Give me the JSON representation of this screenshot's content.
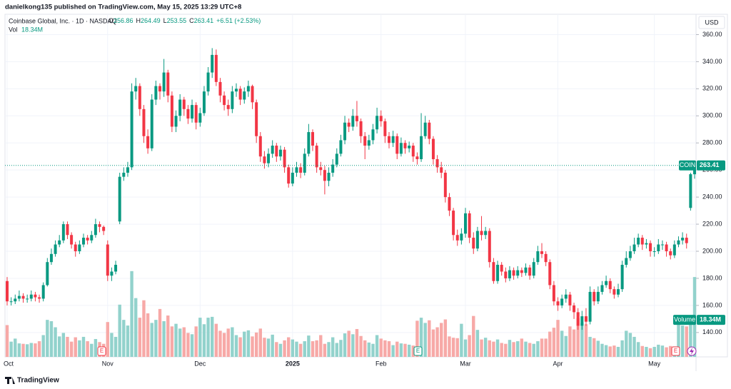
{
  "header": {
    "byline": "danielkong135 published on TradingView.com, May 15, 2025 13:29 UTC+8",
    "symbol": "Coinbase Global, Inc. · 1D · NASDAQ",
    "ohlc": [
      "O",
      "256.86",
      "H",
      "264.49",
      "L",
      "253.55",
      "C",
      "263.41"
    ],
    "change": "+6.51 (+2.53%)",
    "vol_key": "Vol",
    "vol_value": "18.34M",
    "currency": "USD",
    "footer": "TradingView"
  },
  "chart_data": {
    "type": "candlestick",
    "ticker": "COIN",
    "volume_name": "Volume",
    "volume_label": "18.34M",
    "events": [
      "E",
      "E",
      "E"
    ],
    "up_color": "#089981",
    "down_color": "#f23645",
    "volume_up_color": "#92d2cc",
    "volume_down_color": "#f7a9a7",
    "grid": true,
    "ylim": [
      122,
      375
    ],
    "volume_lim": [
      0,
      30
    ],
    "yticks": [
      {
        "value": 140,
        "label": "140.00"
      },
      {
        "value": 160,
        "label": "160.00"
      },
      {
        "value": 180,
        "label": "180.00"
      },
      {
        "value": 200,
        "label": "200.00"
      },
      {
        "value": 220,
        "label": "220.00"
      },
      {
        "value": 240,
        "label": "240.00"
      },
      {
        "value": 260,
        "label": "260.00"
      },
      {
        "value": 280,
        "label": "280.00"
      },
      {
        "value": 300,
        "label": "300.00"
      },
      {
        "value": 320,
        "label": "320.00"
      },
      {
        "value": 340,
        "label": "340.00"
      },
      {
        "value": 360,
        "label": "360.00"
      }
    ],
    "categories": [
      "Oct",
      null,
      null,
      null,
      null,
      null,
      null,
      null,
      null,
      null,
      null,
      null,
      null,
      null,
      null,
      null,
      null,
      null,
      null,
      null,
      null,
      null,
      null,
      null,
      null,
      "Nov",
      null,
      null,
      null,
      null,
      null,
      null,
      null,
      null,
      null,
      null,
      null,
      null,
      null,
      null,
      null,
      null,
      null,
      null,
      null,
      null,
      null,
      null,
      "Dec",
      null,
      null,
      null,
      null,
      null,
      null,
      null,
      null,
      null,
      null,
      null,
      null,
      null,
      null,
      null,
      null,
      null,
      null,
      null,
      null,
      null,
      null,
      "2025",
      null,
      null,
      null,
      null,
      null,
      null,
      null,
      null,
      null,
      null,
      null,
      null,
      null,
      null,
      null,
      null,
      null,
      null,
      null,
      null,
      null,
      "Feb",
      null,
      null,
      null,
      null,
      null,
      null,
      null,
      null,
      null,
      null,
      null,
      null,
      null,
      null,
      null,
      null,
      null,
      null,
      null,
      null,
      "Mar",
      null,
      null,
      null,
      null,
      null,
      null,
      null,
      null,
      null,
      null,
      null,
      null,
      null,
      null,
      null,
      null,
      null,
      null,
      null,
      null,
      null,
      null,
      "Apr",
      null,
      null,
      null,
      null,
      null,
      null,
      null,
      null,
      null,
      null,
      null,
      null,
      null,
      null,
      null,
      null,
      null,
      null,
      null,
      null,
      null,
      null,
      null,
      "May",
      null,
      null,
      null,
      null,
      null,
      null,
      null,
      null,
      null,
      null
    ],
    "open": [
      178,
      163,
      163,
      165,
      167,
      165,
      165,
      168,
      166,
      165,
      175,
      192,
      198,
      205,
      208,
      220,
      212,
      205,
      200,
      205,
      210,
      208,
      212,
      220,
      218,
      205,
      182,
      185,
      222,
      255,
      258,
      262,
      318,
      322,
      305,
      285,
      276,
      312,
      322,
      318,
      332,
      315,
      292,
      300,
      312,
      305,
      298,
      308,
      295,
      302,
      318,
      332,
      345,
      325,
      315,
      308,
      305,
      318,
      320,
      312,
      318,
      322,
      310,
      285,
      270,
      265,
      272,
      278,
      270,
      275,
      262,
      250,
      258,
      262,
      258,
      272,
      288,
      278,
      262,
      260,
      252,
      258,
      264,
      272,
      282,
      295,
      292,
      300,
      296,
      285,
      278,
      282,
      290,
      300,
      296,
      285,
      280,
      285,
      272,
      280,
      276,
      278,
      270,
      268,
      285,
      295,
      283,
      268,
      262,
      258,
      240,
      230,
      212,
      208,
      213,
      228,
      210,
      202,
      215,
      212,
      215,
      192,
      178,
      190,
      185,
      180,
      186,
      182,
      186,
      184,
      188,
      182,
      192,
      200,
      198,
      192,
      175,
      163,
      160,
      165,
      168,
      160,
      155,
      145,
      152,
      148,
      170,
      163,
      170,
      175,
      178,
      172,
      168,
      172,
      190,
      195,
      200,
      205,
      210,
      205,
      206,
      200,
      200,
      205,
      205,
      200,
      197,
      205,
      208,
      210,
      232,
      256.86
    ],
    "high": [
      181,
      166,
      168,
      171,
      169,
      168,
      171,
      170,
      168,
      177,
      195,
      202,
      208,
      212,
      222,
      222,
      214,
      207,
      208,
      213,
      212,
      215,
      224,
      222,
      219,
      208,
      188,
      193,
      258,
      262,
      266,
      324,
      328,
      324,
      308,
      290,
      316,
      326,
      324,
      342,
      334,
      318,
      304,
      316,
      314,
      308,
      312,
      310,
      306,
      322,
      336,
      350,
      349,
      328,
      318,
      312,
      322,
      324,
      322,
      321,
      326,
      323,
      312,
      288,
      274,
      276,
      282,
      280,
      278,
      277,
      264,
      262,
      266,
      265,
      276,
      294,
      290,
      280,
      266,
      263,
      262,
      268,
      276,
      286,
      300,
      298,
      305,
      311,
      298,
      288,
      286,
      294,
      306,
      304,
      298,
      288,
      289,
      287,
      284,
      282,
      281,
      280,
      273,
      302,
      300,
      297,
      285,
      271,
      266,
      260,
      243,
      232,
      216,
      217,
      232,
      230,
      214,
      218,
      226,
      218,
      217,
      195,
      193,
      192,
      188,
      189,
      188,
      189,
      188,
      191,
      190,
      195,
      204,
      206,
      200,
      194,
      178,
      166,
      168,
      172,
      170,
      162,
      158,
      156,
      158,
      174,
      172,
      174,
      178,
      182,
      180,
      174,
      176,
      193,
      200,
      204,
      210,
      213,
      212,
      209,
      208,
      203,
      209,
      208,
      207,
      202,
      208,
      211,
      214,
      213,
      258,
      264.49
    ],
    "low": [
      160,
      160,
      161,
      163,
      162,
      162,
      163,
      163,
      162,
      163,
      174,
      190,
      196,
      203,
      206,
      209,
      202,
      196,
      198,
      203,
      205,
      206,
      210,
      214,
      212,
      178,
      178,
      183,
      220,
      252,
      255,
      260,
      312,
      300,
      280,
      272,
      274,
      308,
      312,
      314,
      310,
      288,
      288,
      296,
      300,
      294,
      295,
      290,
      292,
      300,
      315,
      328,
      322,
      310,
      304,
      300,
      302,
      314,
      308,
      309,
      314,
      305,
      280,
      266,
      261,
      262,
      269,
      266,
      267,
      258,
      247,
      248,
      255,
      254,
      256,
      270,
      274,
      258,
      256,
      242,
      248,
      255,
      262,
      270,
      279,
      288,
      289,
      292,
      280,
      268,
      275,
      279,
      287,
      292,
      280,
      276,
      277,
      268,
      270,
      272,
      273,
      266,
      264,
      266,
      283,
      279,
      264,
      258,
      254,
      236,
      226,
      208,
      204,
      205,
      210,
      206,
      198,
      200,
      208,
      209,
      188,
      176,
      176,
      182,
      177,
      178,
      179,
      180,
      181,
      182,
      179,
      180,
      190,
      195,
      189,
      172,
      160,
      156,
      158,
      162,
      156,
      150,
      142,
      142,
      145,
      146,
      160,
      161,
      168,
      173,
      169,
      165,
      166,
      170,
      188,
      193,
      198,
      203,
      201,
      202,
      196,
      196,
      198,
      201,
      196,
      194,
      195,
      203,
      205,
      202,
      230,
      253.55
    ],
    "close": [
      163,
      163,
      165,
      167,
      165,
      165,
      168,
      166,
      165,
      175,
      192,
      198,
      205,
      208,
      220,
      212,
      205,
      200,
      205,
      210,
      208,
      212,
      220,
      218,
      215,
      182,
      185,
      190,
      255,
      258,
      262,
      318,
      322,
      305,
      285,
      276,
      312,
      322,
      318,
      332,
      315,
      292,
      300,
      312,
      305,
      298,
      308,
      295,
      302,
      318,
      332,
      345,
      325,
      315,
      308,
      305,
      318,
      320,
      312,
      318,
      322,
      310,
      285,
      270,
      265,
      272,
      278,
      270,
      275,
      262,
      250,
      258,
      262,
      258,
      272,
      288,
      278,
      262,
      260,
      252,
      258,
      264,
      272,
      282,
      295,
      292,
      300,
      296,
      285,
      278,
      282,
      290,
      300,
      296,
      285,
      280,
      285,
      272,
      280,
      276,
      278,
      270,
      268,
      285,
      295,
      283,
      268,
      262,
      258,
      240,
      230,
      212,
      208,
      213,
      228,
      210,
      202,
      215,
      212,
      215,
      192,
      178,
      190,
      185,
      180,
      186,
      182,
      186,
      184,
      188,
      182,
      192,
      200,
      198,
      192,
      175,
      163,
      160,
      165,
      168,
      160,
      155,
      145,
      152,
      148,
      170,
      163,
      170,
      175,
      178,
      172,
      168,
      172,
      190,
      195,
      200,
      205,
      210,
      205,
      206,
      200,
      200,
      205,
      205,
      200,
      197,
      205,
      208,
      210,
      206,
      256.9,
      263.41
    ],
    "volume": [
      7.3,
      3.5,
      4.2,
      3.1,
      3.0,
      2.9,
      3.2,
      3.1,
      3.6,
      5.0,
      8.5,
      8.2,
      6.8,
      4.7,
      5.5,
      4.6,
      3.5,
      4.5,
      3.8,
      4.6,
      3.6,
      3.0,
      4.1,
      3.4,
      3.0,
      8.0,
      5.5,
      4.6,
      12.0,
      8.5,
      7.2,
      19.7,
      13.5,
      9.0,
      13.0,
      10.0,
      7.8,
      8.5,
      11.0,
      8.2,
      9.5,
      7.0,
      7.6,
      6.5,
      6.8,
      5.5,
      5.2,
      7.0,
      9.0,
      7.5,
      9.0,
      9.2,
      7.6,
      6.0,
      5.5,
      6.5,
      6.8,
      5.0,
      4.5,
      5.8,
      6.1,
      4.7,
      5.6,
      6.5,
      4.4,
      4.2,
      5.1,
      3.4,
      3.0,
      3.8,
      4.5,
      4.0,
      3.5,
      3.0,
      3.6,
      4.9,
      3.6,
      3.8,
      5.0,
      3.0,
      3.4,
      4.5,
      3.2,
      3.9,
      5.4,
      6.0,
      5.2,
      6.4,
      4.8,
      3.8,
      3.3,
      3.0,
      5.0,
      4.2,
      3.8,
      3.6,
      2.7,
      3.5,
      3.1,
      3.0,
      2.8,
      2.6,
      8.3,
      9.0,
      7.8,
      8.4,
      6.3,
      6.8,
      7.8,
      8.6,
      4.7,
      4.4,
      4.3,
      7.6,
      4.0,
      5.0,
      9.4,
      6.2,
      4.0,
      4.4,
      3.8,
      3.5,
      4.0,
      3.2,
      3.0,
      3.9,
      3.4,
      3.6,
      4.2,
      3.5,
      3.2,
      3.0,
      3.6,
      4.2,
      4.2,
      5.8,
      6.7,
      8.5,
      6.0,
      4.8,
      7.0,
      6.3,
      8.9,
      7.8,
      7.5,
      4.6,
      4.3,
      3.7,
      3.0,
      2.7,
      2.4,
      2.6,
      2.3,
      3.8,
      6.0,
      5.5,
      4.6,
      3.4,
      2.5,
      2.3,
      2.0,
      2.3,
      2.8,
      2.6,
      2.2,
      2.5,
      2.4,
      7.4,
      7.2,
      7.0,
      7.4,
      18.34
    ]
  }
}
